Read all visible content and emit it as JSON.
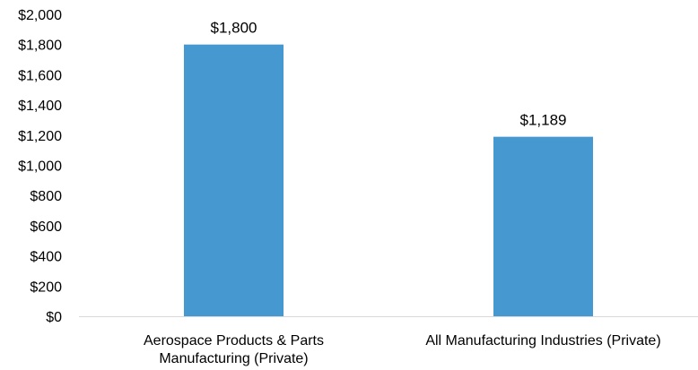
{
  "chart_data": {
    "type": "bar",
    "categories": [
      [
        "Aerospace Products & Parts",
        "Manufacturing (Private)"
      ],
      [
        "All Manufacturing Industries (Private)"
      ]
    ],
    "values": [
      1800,
      1189
    ],
    "data_labels": [
      "$1,800",
      "$1,189"
    ],
    "ylim": [
      0,
      2000
    ],
    "y_ticks": [
      {
        "value": 0,
        "label": "$0"
      },
      {
        "value": 200,
        "label": "$200"
      },
      {
        "value": 400,
        "label": "$400"
      },
      {
        "value": 600,
        "label": "$600"
      },
      {
        "value": 800,
        "label": "$800"
      },
      {
        "value": 1000,
        "label": "$1,000"
      },
      {
        "value": 1200,
        "label": "$1,200"
      },
      {
        "value": 1400,
        "label": "$1,400"
      },
      {
        "value": 1600,
        "label": "$1,600"
      },
      {
        "value": 1800,
        "label": "$1,800"
      },
      {
        "value": 2000,
        "label": "$2,000"
      }
    ],
    "title": "",
    "xlabel": "",
    "ylabel": "",
    "grid": false,
    "legend": "none",
    "bar_color": "#4599D0"
  }
}
